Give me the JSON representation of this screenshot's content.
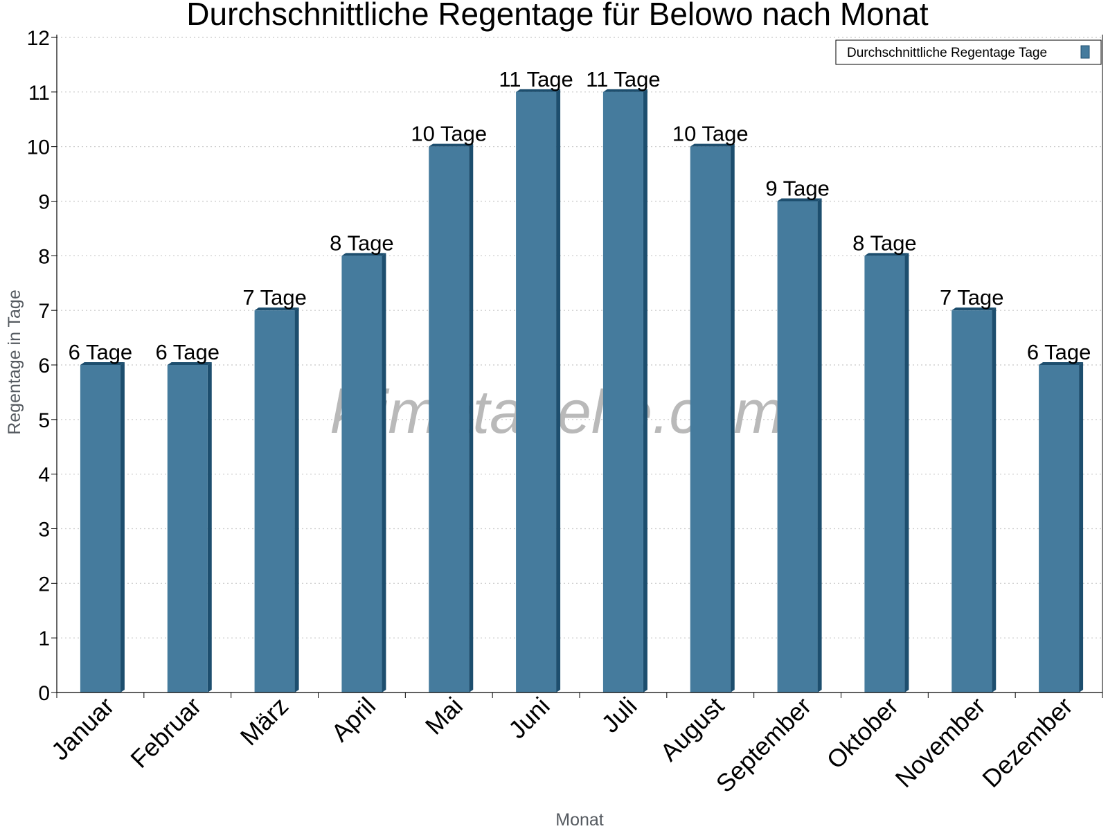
{
  "chart_data": {
    "type": "bar",
    "title": "Durchschnittliche Regentage für Belowo nach Monat",
    "xlabel": "Monat",
    "ylabel": "Regentage in Tage",
    "ylim": [
      0,
      12
    ],
    "yticks": [
      0,
      1,
      2,
      3,
      4,
      5,
      6,
      7,
      8,
      9,
      10,
      11,
      12
    ],
    "grid": true,
    "legend_position": "top-right",
    "categories": [
      "Januar",
      "Februar",
      "März",
      "April",
      "Mai",
      "Juni",
      "Juli",
      "August",
      "September",
      "Oktober",
      "November",
      "Dezember"
    ],
    "series": [
      {
        "name": "Durchschnittliche Regentage Tage",
        "values": [
          6,
          6,
          7,
          8,
          10,
          11,
          11,
          10,
          9,
          8,
          7,
          6
        ],
        "labels": [
          "6 Tage",
          "6 Tage",
          "7 Tage",
          "8 Tage",
          "10 Tage",
          "11 Tage",
          "11 Tage",
          "10 Tage",
          "9 Tage",
          "8 Tage",
          "7 Tage",
          "6 Tage"
        ],
        "color": "#457b9d",
        "side_color": "#1d4e6e"
      }
    ]
  },
  "watermark": "klimatabelle.com"
}
